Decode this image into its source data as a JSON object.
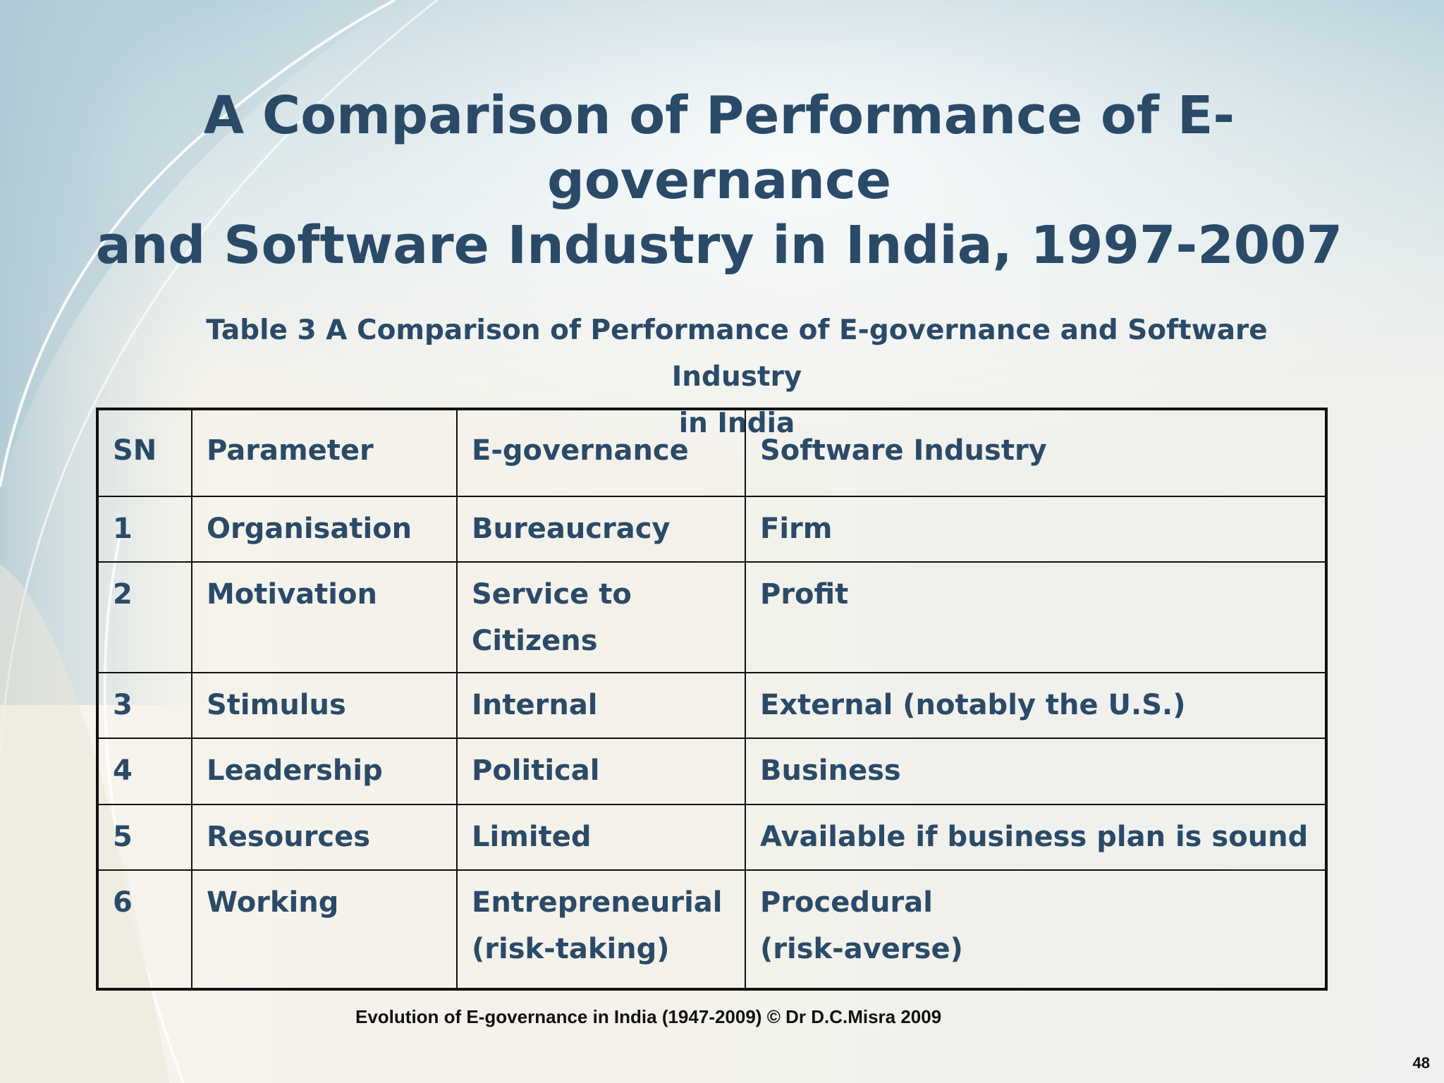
{
  "slide": {
    "title_lines": [
      "A Comparison of Performance of E-governance",
      "and Software Industry in India, 1997-2007"
    ],
    "table_caption_lines": [
      "Table 3 A Comparison of Performance of E-governance and Software Industry",
      "in  India"
    ],
    "table": {
      "headers": [
        "SN",
        "Parameter",
        "E-governance",
        "Software Industry"
      ],
      "rows": [
        {
          "sn": "1",
          "parameter": "Organisation",
          "egov": [
            "Bureaucracy"
          ],
          "software": [
            "Firm"
          ]
        },
        {
          "sn": "2",
          "parameter": "Motivation",
          "egov": [
            "Service to",
            "Citizens"
          ],
          "software": [
            "Profit"
          ]
        },
        {
          "sn": "3",
          "parameter": "Stimulus",
          "egov": [
            "Internal"
          ],
          "software": [
            "External (notably the U.S.)"
          ]
        },
        {
          "sn": "4",
          "parameter": "Leadership",
          "egov": [
            "Political"
          ],
          "software": [
            "Business"
          ]
        },
        {
          "sn": "5",
          "parameter": "Resources",
          "egov": [
            "Limited"
          ],
          "software": [
            "Available if business plan is sound"
          ]
        },
        {
          "sn": "6",
          "parameter": "Working",
          "egov": [
            "Entrepreneurial",
            "(risk-taking)"
          ],
          "software": [
            "Procedural",
            "(risk-averse)"
          ]
        }
      ]
    },
    "footer": "Evolution of E-governance in India (1947-2009) © Dr D.C.Misra 2009",
    "page_number": "48"
  },
  "colors": {
    "text": "#2a4a68",
    "border": "#111111"
  }
}
